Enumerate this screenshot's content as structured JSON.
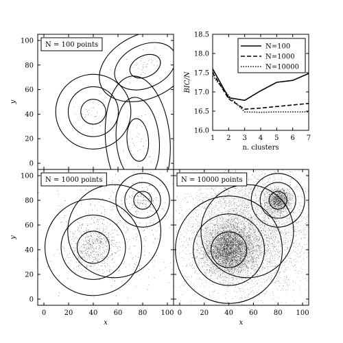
{
  "chart_data": [
    {
      "type": "scatter",
      "panel": "top-left",
      "title": "",
      "annotation": "N = 100 points",
      "n_points": 100,
      "xlim": [
        -5,
        105
      ],
      "ylim": [
        -5,
        105
      ],
      "xticks": [],
      "yticks": [
        "0",
        "20",
        "40",
        "60",
        "80",
        "100"
      ],
      "xlabel": "",
      "ylabel": "y",
      "clusters": [
        {
          "cx": 40,
          "cy": 42,
          "sx": 7,
          "sy": 7,
          "spread": [
            1,
            2,
            3
          ]
        },
        {
          "cx": 82,
          "cy": 79,
          "sx": 9,
          "sy": 6,
          "angle": 25,
          "spread": [
            1,
            2,
            3
          ]
        },
        {
          "cx": 76,
          "cy": 19,
          "sx": 6,
          "sy": 12,
          "angle": 5,
          "spread": [
            1,
            2,
            3
          ]
        }
      ]
    },
    {
      "type": "line",
      "panel": "top-right",
      "title": "",
      "xlabel": "n. clusters",
      "ylabel": "BIC/N",
      "xlim": [
        1,
        7
      ],
      "ylim": [
        16.0,
        18.5
      ],
      "xticks": [
        "1",
        "2",
        "3",
        "4",
        "5",
        "6",
        "7"
      ],
      "yticks": [
        "16.0",
        "16.5",
        "17.0",
        "17.5",
        "18.0",
        "18.5"
      ],
      "legend": "top-right",
      "x": [
        1,
        2,
        3,
        4,
        5,
        6,
        7
      ],
      "series": [
        {
          "name": "N=100",
          "style": "solid",
          "values": [
            17.6,
            16.85,
            16.78,
            17.03,
            17.25,
            17.3,
            17.48
          ]
        },
        {
          "name": "N=1000",
          "style": "dashed",
          "values": [
            17.5,
            16.82,
            16.55,
            16.58,
            16.62,
            16.66,
            16.7
          ]
        },
        {
          "name": "N=10000",
          "style": "dotted",
          "values": [
            17.42,
            16.9,
            16.48,
            16.47,
            16.48,
            16.48,
            16.48
          ]
        }
      ]
    },
    {
      "type": "scatter",
      "panel": "bottom-left",
      "title": "",
      "annotation": "N = 1000 points",
      "n_points": 1000,
      "xlim": [
        -5,
        105
      ],
      "ylim": [
        -5,
        105
      ],
      "xticks": [
        "0",
        "20",
        "40",
        "60",
        "80",
        "100"
      ],
      "yticks": [
        "0",
        "20",
        "40",
        "60",
        "80",
        "100"
      ],
      "xlabel": "x",
      "ylabel": "y",
      "clusters": [
        {
          "cx": 40,
          "cy": 42,
          "sx": 9,
          "sy": 9,
          "spread": [
            1,
            2,
            3
          ]
        },
        {
          "cx": 80,
          "cy": 80,
          "sx": 5,
          "sy": 5,
          "spread": [
            1,
            2,
            3
          ]
        },
        {
          "cx": 57,
          "cy": 55,
          "sx": 26,
          "sy": 26,
          "spread": [
            1,
            2.3
          ]
        }
      ]
    },
    {
      "type": "scatter",
      "panel": "bottom-right",
      "title": "",
      "annotation": "N = 10000 points",
      "n_points": 10000,
      "xlim": [
        -5,
        105
      ],
      "ylim": [
        -5,
        105
      ],
      "xticks": [
        "0",
        "20",
        "40",
        "60",
        "80",
        "100"
      ],
      "yticks": [],
      "xlabel": "x",
      "ylabel": "",
      "clusters": [
        {
          "cx": 40,
          "cy": 40,
          "sx": 10,
          "sy": 10,
          "spread": [
            1,
            2,
            3
          ]
        },
        {
          "cx": 80,
          "cy": 80,
          "sx": 5,
          "sy": 5,
          "spread": [
            1,
            2,
            3
          ]
        },
        {
          "cx": 55,
          "cy": 55,
          "sx": 26,
          "sy": 26,
          "spread": [
            1,
            2.3
          ]
        }
      ]
    }
  ]
}
